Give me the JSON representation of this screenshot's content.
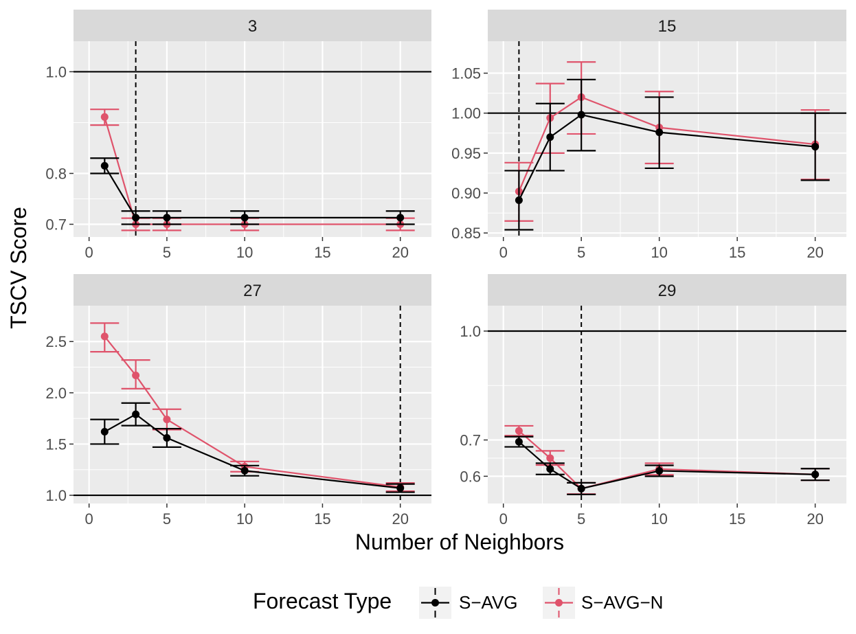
{
  "figure": {
    "ylabel": "TSCV Score",
    "xlabel": "Number of Neighbors",
    "legend_title": "Forecast Type",
    "legend_position": "bottom"
  },
  "series_styles": [
    {
      "name": "S−AVG",
      "color": "#000000"
    },
    {
      "name": "S−AVG−N",
      "color": "#DF536B"
    }
  ],
  "panel_bg": "#EBEBEB",
  "strip_bg": "#D9D9D9",
  "chart_data": [
    {
      "type": "line",
      "title": "3",
      "x": [
        1,
        3,
        5,
        10,
        20
      ],
      "xlim": [
        -1,
        22
      ],
      "xticks": [
        0,
        5,
        10,
        15,
        20
      ],
      "xtick_labels": [
        "0",
        "5",
        "10",
        "15",
        "20"
      ],
      "ylim": [
        0.675,
        1.06
      ],
      "yticks": [
        0.7,
        0.8,
        1.0
      ],
      "ytick_labels": [
        "0.7",
        "0.8",
        "1.0"
      ],
      "hline": 1.0,
      "vline": 3,
      "series": [
        {
          "name": "S−AVG",
          "values": [
            0.815,
            0.713,
            0.713,
            0.713,
            0.713
          ],
          "lower": [
            0.8,
            0.7,
            0.7,
            0.7,
            0.7
          ],
          "upper": [
            0.83,
            0.726,
            0.726,
            0.726,
            0.726
          ]
        },
        {
          "name": "S−AVG−N",
          "values": [
            0.911,
            0.7,
            0.7,
            0.7,
            0.7
          ],
          "lower": [
            0.895,
            0.688,
            0.688,
            0.688,
            0.688
          ],
          "upper": [
            0.926,
            0.712,
            0.712,
            0.712,
            0.712
          ]
        }
      ]
    },
    {
      "type": "line",
      "title": "15",
      "x": [
        1,
        3,
        5,
        10,
        20
      ],
      "xlim": [
        -1,
        22
      ],
      "xticks": [
        0,
        5,
        10,
        15,
        20
      ],
      "xtick_labels": [
        "0",
        "5",
        "10",
        "15",
        "20"
      ],
      "ylim": [
        0.845,
        1.09
      ],
      "yticks": [
        0.85,
        0.9,
        0.95,
        1.0,
        1.05
      ],
      "ytick_labels": [
        "0.85",
        "0.90",
        "0.95",
        "1.00",
        "1.05"
      ],
      "hline": 1.0,
      "vline": 1,
      "series": [
        {
          "name": "S−AVG",
          "values": [
            0.891,
            0.97,
            0.998,
            0.976,
            0.958
          ],
          "lower": [
            0.854,
            0.928,
            0.953,
            0.931,
            0.916
          ],
          "upper": [
            0.928,
            1.012,
            1.042,
            1.02,
            1.0
          ]
        },
        {
          "name": "S−AVG−N",
          "values": [
            0.902,
            0.994,
            1.02,
            0.982,
            0.961
          ],
          "lower": [
            0.865,
            0.95,
            0.974,
            0.937,
            0.917
          ],
          "upper": [
            0.938,
            1.037,
            1.064,
            1.027,
            1.004
          ]
        }
      ]
    },
    {
      "type": "line",
      "title": "27",
      "x": [
        1,
        3,
        5,
        10,
        20
      ],
      "xlim": [
        -1,
        22
      ],
      "xticks": [
        0,
        5,
        10,
        15,
        20
      ],
      "xtick_labels": [
        "0",
        "5",
        "10",
        "15",
        "20"
      ],
      "ylim": [
        0.92,
        2.85
      ],
      "yticks": [
        1.0,
        1.5,
        2.0,
        2.5
      ],
      "ytick_labels": [
        "1.0",
        "1.5",
        "2.0",
        "2.5"
      ],
      "hline": 1.0,
      "vline": 20,
      "series": [
        {
          "name": "S−AVG",
          "values": [
            1.62,
            1.79,
            1.56,
            1.24,
            1.07
          ],
          "lower": [
            1.5,
            1.68,
            1.47,
            1.19,
            1.03
          ],
          "upper": [
            1.74,
            1.9,
            1.65,
            1.29,
            1.11
          ]
        },
        {
          "name": "S−AVG−N",
          "values": [
            2.55,
            2.17,
            1.74,
            1.28,
            1.08
          ],
          "lower": [
            2.4,
            2.04,
            1.64,
            1.23,
            1.04
          ],
          "upper": [
            2.68,
            2.32,
            1.84,
            1.33,
            1.12
          ]
        }
      ]
    },
    {
      "type": "line",
      "title": "29",
      "x": [
        1,
        3,
        5,
        10,
        20
      ],
      "xlim": [
        -1,
        22
      ],
      "xticks": [
        0,
        5,
        10,
        15,
        20
      ],
      "xtick_labels": [
        "0",
        "5",
        "10",
        "15",
        "20"
      ],
      "ylim": [
        0.525,
        1.07
      ],
      "yticks": [
        0.6,
        0.7,
        1.0
      ],
      "ytick_labels": [
        "0.6",
        "0.7",
        "1.0"
      ],
      "hline": 1.0,
      "vline": 5,
      "series": [
        {
          "name": "S−AVG",
          "values": [
            0.695,
            0.62,
            0.566,
            0.615,
            0.605
          ],
          "lower": [
            0.681,
            0.605,
            0.55,
            0.6,
            0.589
          ],
          "upper": [
            0.709,
            0.636,
            0.582,
            0.63,
            0.621
          ]
        },
        {
          "name": "S−AVG−N",
          "values": [
            0.725,
            0.65,
            0.566,
            0.62,
            0.605
          ],
          "lower": [
            0.712,
            0.631,
            0.551,
            0.604,
            0.589
          ],
          "upper": [
            0.739,
            0.67,
            0.582,
            0.636,
            0.621
          ]
        }
      ]
    }
  ]
}
